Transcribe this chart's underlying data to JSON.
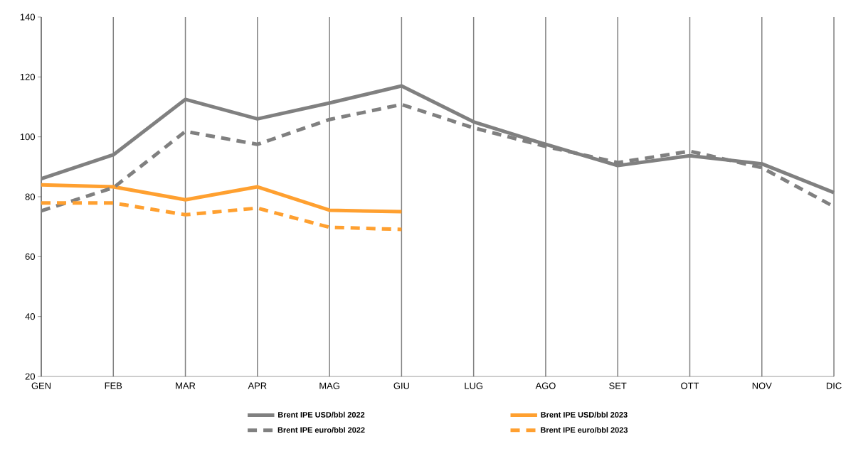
{
  "chart_data": {
    "type": "line",
    "categories": [
      "GEN",
      "FEB",
      "MAR",
      "APR",
      "MAG",
      "GIU",
      "LUG",
      "AGO",
      "SET",
      "OTT",
      "NOV",
      "DIC"
    ],
    "series": [
      {
        "name": "Brent IPE USD/bbl 2022",
        "color": "#808080",
        "line_style": "solid",
        "values": [
          86,
          94,
          112.5,
          106,
          111.3,
          117,
          105,
          97.5,
          90.4,
          93.7,
          91,
          81.4
        ]
      },
      {
        "name": "Brent IPE USD/bbl 2023",
        "color": "#ffa030",
        "line_style": "solid",
        "values": [
          84,
          83.3,
          79,
          83.3,
          75.5,
          75,
          null,
          null,
          null,
          null,
          null,
          null
        ]
      },
      {
        "name": "Brent IPE euro/bbl 2022",
        "color": "#808080",
        "line_style": "dashed",
        "values": [
          75.3,
          83,
          101.8,
          97.5,
          105.8,
          110.8,
          103,
          96.8,
          91.4,
          95.2,
          89.7,
          76.7
        ]
      },
      {
        "name": "Brent IPE euro/bbl 2023",
        "color": "#ffa030",
        "line_style": "dashed",
        "values": [
          77.9,
          77.9,
          74,
          76.2,
          69.8,
          69.1,
          null,
          null,
          null,
          null,
          null,
          null
        ]
      }
    ],
    "ylim": [
      20,
      140
    ],
    "yticks": [
      20,
      40,
      60,
      80,
      100,
      120,
      140
    ],
    "grid": "x",
    "legend": "bottom",
    "marker": "none"
  }
}
